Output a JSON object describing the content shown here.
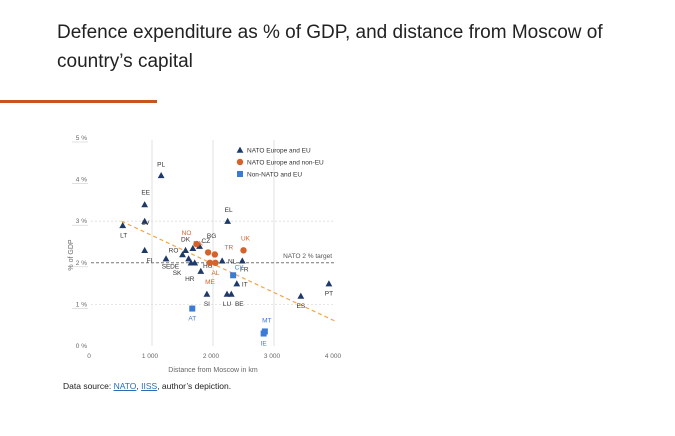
{
  "page": {
    "title": "Defence expenditure as % of GDP, and distance from Moscow of country’s capital",
    "source_prefix": "Data source: ",
    "source_links": [
      "NATO",
      "IISS"
    ],
    "source_sep": ", ",
    "source_suffix": ", author’s depiction."
  },
  "colors": {
    "nato_eu": "#1f3a68",
    "nato_non_eu": "#d4622a",
    "non_nato_eu": "#3a7bd5",
    "trend": "#f0a64a",
    "target": "#777777",
    "accent": "#c8541f"
  },
  "chart_data": {
    "type": "scatter",
    "title": "Defence expenditure as % of GDP, and distance from Moscow of country’s capital",
    "xlabel": "Distance from Moscow in km",
    "ylabel": "% of GDP",
    "xlim": [
      0,
      4000
    ],
    "ylim": [
      0,
      5
    ],
    "x_ticks": [
      {
        "v": 0,
        "label": "0"
      },
      {
        "v": 1000,
        "label": "1 000"
      },
      {
        "v": 2000,
        "label": "2 000"
      },
      {
        "v": 3000,
        "label": "3 000"
      },
      {
        "v": 4000,
        "label": "4 000"
      }
    ],
    "y_ticks": [
      {
        "v": 0,
        "label": "0 %"
      },
      {
        "v": 1,
        "label": "1 %"
      },
      {
        "v": 2,
        "label": "2 %"
      },
      {
        "v": 3,
        "label": "3 %"
      },
      {
        "v": 4,
        "label": "4 %"
      },
      {
        "v": 5,
        "label": "5 %"
      }
    ],
    "legend_position": "top-right",
    "legend": [
      {
        "key": "nato_eu",
        "label": "NATO Europe and EU",
        "marker": "triangle"
      },
      {
        "key": "nato_non_eu",
        "label": "NATO Europe and non-EU",
        "marker": "circle"
      },
      {
        "key": "non_nato_eu",
        "label": "Non-NATO and EU",
        "marker": "square"
      }
    ],
    "reference_lines": [
      {
        "type": "horizontal",
        "y": 2,
        "label": "NATO 2 % target"
      },
      {
        "type": "vertical",
        "x": 1000
      },
      {
        "type": "horizontal-grid",
        "y": 1
      },
      {
        "type": "horizontal-grid",
        "y": 3
      },
      {
        "type": "vertical",
        "x": 2000
      },
      {
        "type": "vertical",
        "x": 3000
      }
    ],
    "trendline": {
      "x0": 500,
      "y0": 3.0,
      "x1": 4000,
      "y1": 0.6
    },
    "series": [
      {
        "name": "NATO Europe and EU",
        "key": "nato_eu",
        "marker": "triangle",
        "points": [
          {
            "label": "PL",
            "x": 1150,
            "y": 4.1,
            "lx": 0,
            "ly": -9
          },
          {
            "label": "LT",
            "x": 520,
            "y": 2.9,
            "lx": 1,
            "ly": 12
          },
          {
            "label": "EE",
            "x": 880,
            "y": 3.4,
            "lx": 1,
            "ly": -10
          },
          {
            "label": "LV",
            "x": 880,
            "y": 3.0,
            "lx": 1,
            "ly": 4
          },
          {
            "label": "FI",
            "x": 880,
            "y": 2.3,
            "lx": 5,
            "ly": 12
          },
          {
            "label": "EL",
            "x": 2240,
            "y": 3.0,
            "lx": 1,
            "ly": -9
          },
          {
            "label": "SE",
            "x": 1230,
            "y": 2.1,
            "lx": 0,
            "ly": 10
          },
          {
            "label": "DE",
            "x": 1600,
            "y": 2.1,
            "lx": -14,
            "ly": 10
          },
          {
            "label": "SK",
            "x": 1640,
            "y": 2.0,
            "lx": -14,
            "ly": 12
          },
          {
            "label": "RO",
            "x": 1500,
            "y": 2.2,
            "lx": -9,
            "ly": -2
          },
          {
            "label": "CZ",
            "x": 1670,
            "y": 2.35,
            "lx": 13,
            "ly": -5
          },
          {
            "label": "BG",
            "x": 1780,
            "y": 2.4,
            "lx": 12,
            "ly": -8
          },
          {
            "label": "DK",
            "x": 1550,
            "y": 2.3,
            "lx": 0,
            "ly": -9
          },
          {
            "label": "HU",
            "x": 1700,
            "y": 2.0,
            "lx": 13,
            "ly": 5
          },
          {
            "label": "HR",
            "x": 1800,
            "y": 1.8,
            "lx": -11,
            "ly": 10
          },
          {
            "label": "NL",
            "x": 2150,
            "y": 2.05,
            "lx": 10,
            "ly": 3
          },
          {
            "label": "FR",
            "x": 2480,
            "y": 2.05,
            "lx": 2,
            "ly": 11
          },
          {
            "label": "IT",
            "x": 2390,
            "y": 1.5,
            "lx": 8,
            "ly": 3
          },
          {
            "label": "SI",
            "x": 1900,
            "y": 1.25,
            "lx": 0,
            "ly": 12
          },
          {
            "label": "LU",
            "x": 2230,
            "y": 1.25,
            "lx": 0,
            "ly": 12
          },
          {
            "label": "BE",
            "x": 2300,
            "y": 1.25,
            "lx": 8,
            "ly": 12
          },
          {
            "label": "ES",
            "x": 3440,
            "y": 1.2,
            "lx": 0,
            "ly": 12
          },
          {
            "label": "PT",
            "x": 3900,
            "y": 1.5,
            "lx": 0,
            "ly": 12
          }
        ]
      },
      {
        "name": "NATO Europe and non-EU",
        "key": "nato_non_eu",
        "marker": "circle",
        "points": [
          {
            "label": "UK",
            "x": 2500,
            "y": 2.3,
            "lx": 2,
            "ly": -10
          },
          {
            "label": "NO",
            "x": 1730,
            "y": 2.45,
            "lx": -10,
            "ly": -9
          },
          {
            "label": "MK",
            "x": 1920,
            "y": 2.25,
            "lx": -10,
            "ly": -7
          },
          {
            "label": "TR",
            "x": 2030,
            "y": 2.2,
            "lx": 14,
            "ly": -5
          },
          {
            "label": "AL",
            "x": 2040,
            "y": 2.0,
            "lx": 0,
            "ly": 12
          },
          {
            "label": "ME",
            "x": 1950,
            "y": 2.0,
            "lx": 0,
            "ly": 21
          }
        ]
      },
      {
        "name": "Non-NATO and EU",
        "key": "non_nato_eu",
        "marker": "square",
        "points": [
          {
            "label": "CY",
            "x": 2330,
            "y": 1.7,
            "lx": 6,
            "ly": -6
          },
          {
            "label": "AT",
            "x": 1660,
            "y": 0.9,
            "lx": 0,
            "ly": 12
          },
          {
            "label": "MT",
            "x": 2850,
            "y": 0.35,
            "lx": 2,
            "ly": -9
          },
          {
            "label": "IE",
            "x": 2830,
            "y": 0.3,
            "lx": 0,
            "ly": 12
          }
        ]
      }
    ]
  }
}
